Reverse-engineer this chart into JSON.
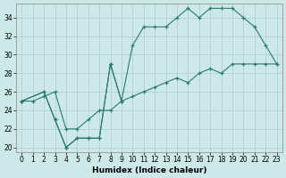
{
  "xlabel": "Humidex (Indice chaleur)",
  "background_color": "#cce8e8",
  "grid_color": "#aacece",
  "line_color": "#2e7b6e",
  "xlim": [
    -0.5,
    23.5
  ],
  "ylim": [
    19.5,
    35.5
  ],
  "xticks": [
    0,
    1,
    2,
    3,
    4,
    5,
    6,
    7,
    8,
    9,
    10,
    11,
    12,
    13,
    14,
    15,
    16,
    17,
    18,
    19,
    20,
    21,
    22,
    23
  ],
  "yticks": [
    20,
    22,
    24,
    26,
    28,
    30,
    32,
    34
  ],
  "line1_x": [
    0,
    2,
    3,
    4,
    5,
    6,
    7,
    8,
    9
  ],
  "line1_y": [
    25,
    26,
    23,
    20,
    21,
    21,
    21,
    29,
    25
  ],
  "line2_x": [
    0,
    2,
    3,
    4,
    5,
    6,
    7,
    8,
    9,
    10,
    11,
    12,
    13,
    14,
    15,
    16,
    17,
    18,
    19,
    20,
    21,
    22,
    23
  ],
  "line2_y": [
    25,
    26,
    23,
    20,
    21,
    21,
    21,
    29,
    25,
    31,
    33,
    33,
    33,
    34,
    35,
    34,
    35,
    35,
    35,
    34,
    33,
    31,
    29
  ],
  "line3_x": [
    0,
    1,
    2,
    3,
    4,
    5,
    6,
    7,
    8,
    9,
    10,
    11,
    12,
    13,
    14,
    15,
    16,
    17,
    18,
    19,
    20,
    21,
    22,
    23
  ],
  "line3_y": [
    25,
    25,
    25.5,
    26,
    22,
    22,
    23,
    24,
    24,
    25,
    25.5,
    26,
    26.5,
    27,
    27.5,
    27,
    28,
    28.5,
    28,
    29,
    29,
    29,
    29,
    29
  ]
}
